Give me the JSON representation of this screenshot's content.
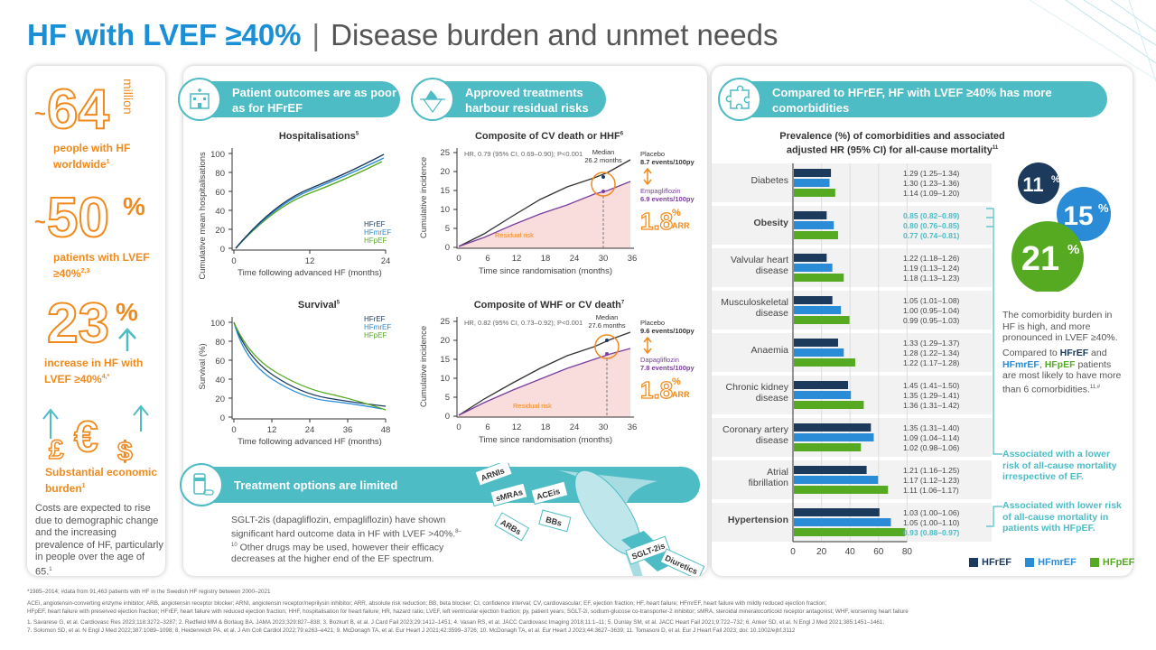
{
  "header": {
    "title_main": "HF with LVEF ≥40%",
    "title_sub": "Disease burden and unmet needs"
  },
  "left": {
    "stat1": {
      "prefix": "~",
      "value": "64",
      "unit": "million",
      "label": "people with HF worldwide",
      "sup": "1"
    },
    "stat2": {
      "prefix": "~",
      "value": "50",
      "unit": "%",
      "label": "patients with LVEF ≥40%",
      "sup": "2,3"
    },
    "stat3": {
      "value": "23",
      "unit": "%",
      "label": "increase in HF with LVEF ≥40%",
      "sup": "4,*"
    },
    "stat4": {
      "label": "Substantial economic burden",
      "sup": "1",
      "body": "Costs are expected to rise due to demographic change and the increasing prevalence of HF, particularly in people over the age of 65.",
      "body_sup": "1"
    }
  },
  "mid": {
    "pill1": "Patient outcomes are as poor as for HFrEF",
    "pill2": "Approved treatments harbour residual risks",
    "pill3": "Treatment options are limited",
    "hosp": {
      "title": "Hospitalisations",
      "sup": "5",
      "ylabel": "Cumulative mean hospitalisations",
      "xlabel": "Time following advanced HF (months)",
      "yticks": [
        "0",
        "20",
        "40",
        "60",
        "80",
        "100"
      ],
      "xticks": [
        "0",
        "12",
        "24"
      ],
      "legend": [
        "HFrEF",
        "HFmrEF",
        "HFpEF"
      ]
    },
    "surv": {
      "title": "Survival",
      "sup": "5",
      "ylabel": "Survival (%)",
      "xlabel": "Time following advanced HF (months)",
      "yticks": [
        "0",
        "20",
        "40",
        "60",
        "80",
        "100"
      ],
      "xticks": [
        "0",
        "12",
        "24",
        "36",
        "48"
      ],
      "legend": [
        "HFrEF",
        "HFmrEF",
        "HFpEF"
      ]
    },
    "cv1": {
      "title": "Composite of CV death or HHF",
      "sup": "6",
      "hr": "HR, 0.79 (95% CI, 0.69–0.90); P<0.001",
      "median_label": "Median",
      "median": "26.2 months",
      "placebo": "Placebo",
      "placebo_rate": "8.7 events/100py",
      "drug": "Empagliflozin",
      "drug_rate": "6.9 events/100py",
      "arr": "1.8",
      "arr_unit": "%",
      "arr_label": "ARR",
      "residual": "Residual risk",
      "ylabel": "Cumulative incidence",
      "xlabel": "Time since randomisation (months)",
      "yticks": [
        "0",
        "5",
        "10",
        "15",
        "20",
        "25"
      ],
      "xticks": [
        "0",
        "6",
        "12",
        "18",
        "24",
        "30",
        "36"
      ]
    },
    "cv2": {
      "title": "Composite of WHF or CV death",
      "sup": "7",
      "hr": "HR, 0.82 (95% CI, 0.73–0.92); P<0.001",
      "median_label": "Median",
      "median": "27.6 months",
      "placebo": "Placebo",
      "placebo_rate": "9.6 events/100py",
      "drug": "Dapagliflozin",
      "drug_rate": "7.8 events/100py",
      "arr": "1.8",
      "arr_unit": "%",
      "arr_label": "ARR",
      "residual": "Residual risk",
      "ylabel": "Cumulative incidence",
      "xlabel": "Time since randomisation (months)",
      "yticks": [
        "0",
        "5",
        "10",
        "15",
        "20",
        "25"
      ],
      "xticks": [
        "0",
        "6",
        "12",
        "18",
        "24",
        "30",
        "36"
      ]
    },
    "treat_text": "SGLT-2is (dapagliflozin, empagliflozin) have shown significant hard outcome data in HF with LVEF >40%.",
    "treat_sup": "8–10",
    "treat_text2": "Other drugs may be used, however their efficacy decreases at the higher end of the EF spectrum.",
    "drugs": [
      "ARNIs",
      "sMRAs",
      "ACEis",
      "BBs",
      "ARBs",
      "SGLT-2is",
      "Diuretics"
    ]
  },
  "right": {
    "pill": "Compared to HFrEF, HF with LVEF ≥40% has more comorbidities",
    "chart_title": "Prevalence (%) of comorbidities and associated adjusted HR (95% CI) for all-cause mortality",
    "chart_sup": "11",
    "xticks": [
      "0",
      "20",
      "40",
      "60",
      "80"
    ],
    "legend": [
      "HFrEF",
      "HFmrEF",
      "HFpEF"
    ],
    "circles": [
      {
        "value": "11",
        "unit": "%"
      },
      {
        "value": "15",
        "unit": "%"
      },
      {
        "value": "21",
        "unit": "%"
      }
    ],
    "desc1": "The comorbidity burden in HF is high, and more pronounced in LVEF ≥40%.",
    "desc2_a": "Compared to",
    "desc2_b": "HFrEF",
    "desc2_c": "and",
    "desc2_d": "HFmrEF",
    "desc2_e": ", ",
    "desc2_f": "HFpEF",
    "desc2_g": "patients are most likely to have more than 6 comorbidities.",
    "desc2_sup": "11,#",
    "assoc1": "Associated with a lower risk of all-cause mortality irrespective of EF.",
    "assoc2": "Associated with lower risk of all-cause mortality in patients with HFpEF."
  },
  "chart_data": {
    "type": "bar",
    "orientation": "horizontal",
    "categories": [
      "Diabetes",
      "Obesity",
      "Valvular heart disease",
      "Musculoskeletal disease",
      "Anaemia",
      "Chronic kidney disease",
      "Coronary artery disease",
      "Atrial fibrillation",
      "Hypertension"
    ],
    "bold_categories": [
      "Obesity",
      "Hypertension"
    ],
    "series": [
      {
        "name": "HFrEF",
        "color": "#1b3a5c",
        "values": [
          26,
          23,
          23,
          27,
          31,
          38,
          54,
          51,
          60
        ],
        "hr": [
          "1.29 (1.25–1.34)",
          "0.85 (0.82–0.89)",
          "1.22 (1.18–1.26)",
          "1.05 (1.01–1.08)",
          "1.33 (1.29–1.37)",
          "1.45 (1.41–1.50)",
          "1.35 (1.31–1.40)",
          "1.21 (1.16–1.25)",
          "1.03 (1.00–1.06)"
        ]
      },
      {
        "name": "HFmrEF",
        "color": "#2a8bd6",
        "values": [
          25,
          28,
          27,
          33,
          35,
          40,
          56,
          59,
          68
        ],
        "hr": [
          "1.30 (1.23–1.36)",
          "0.80 (0.76–0.85)",
          "1.19 (1.13–1.24)",
          "1.00 (0.95–1.04)",
          "1.28 (1.22–1.34)",
          "1.35 (1.29–1.41)",
          "1.09 (1.04–1.14)",
          "1.17 (1.12–1.23)",
          "1.05 (1.00–1.10)"
        ]
      },
      {
        "name": "HFpEF",
        "color": "#55aa22",
        "values": [
          29,
          31,
          35,
          39,
          43,
          49,
          47,
          66,
          78
        ],
        "hr": [
          "1.14 (1.09–1.20)",
          "0.77 (0.74–0.81)",
          "1.18 (1.13–1.23)",
          "0.99 (0.95–1.03)",
          "1.22 (1.17–1.28)",
          "1.36 (1.31–1.42)",
          "1.02 (0.98–1.06)",
          "1.11 (1.06–1.17)",
          "0.93 (0.88–0.97)"
        ]
      }
    ],
    "xlim": [
      0,
      80
    ]
  },
  "colors": {
    "teal": "#4dbcc5",
    "orange": "#f08a1c",
    "blue": "#1a8fd6",
    "green": "#55aa22",
    "navy": "#1b3a5c",
    "purple": "#7a3e9d"
  },
  "footnotes": [
    "*1985–2014; #data from 91,463 patients with HF in the Swedish HF registry between 2000–2021",
    "ACEi, angiotensin-converting enzyme inhibitor; ARB, angiotensin receptor blocker; ARNI, angiotensin receptor/neprilysin inhibitor; ARR, absolute risk reduction; BB, beta blocker; CI, confidence interval; CV, cardiovascular; EF, ejection fraction; HF, heart failure; HFmrEF, heart failure with mildly reduced ejection fraction;",
    "HFpEF, heart failure with preserved ejection fraction; HFrEF, heart failure with reduced ejection fraction; HHF, hospitalisation for heart failure; HR, hazard ratio; LVEF, left ventricular ejection fraction; py, patient years; SGLT-2i, sodium-glucose co-transporter-2 inhibitor; sMRA, steroidal mineralocorticoid receptor antagonist; WHF, worsening heart failure",
    "1. Savarese G, et al. Cardiovasc Res 2023;118:3272–3287; 2. Redfield MM & Borlaug BA. JAMA 2023;329:827–838; 3. Bozkurt B, et al. J Card Fail 2023;29:1412–1451; 4. Vasan RS, et al. JACC Cardiovasc Imaging 2018;11:1–11; 5. Dunlay SM, et al. JACC Heart Fail 2021;9:722–732; 6. Anker SD, et al. N Engl J Med 2021;385:1451–1461;",
    "7. Solomon SD, et al. N Engl J Med 2022;387:1089–1098; 8. Heidenreich PA, et al. J Am Coll Cardiol 2022;79:e263–e421; 9. McDonagh TA, et al. Eur Heart J 2021;42:3599–3726; 10. McDonagh TA, et al. Eur Heart J 2023;44:3627–3639; 11. Tomasoni D, et al. Eur J Heart Fail 2023; doi: 10.1002/ejhf.3112"
  ]
}
